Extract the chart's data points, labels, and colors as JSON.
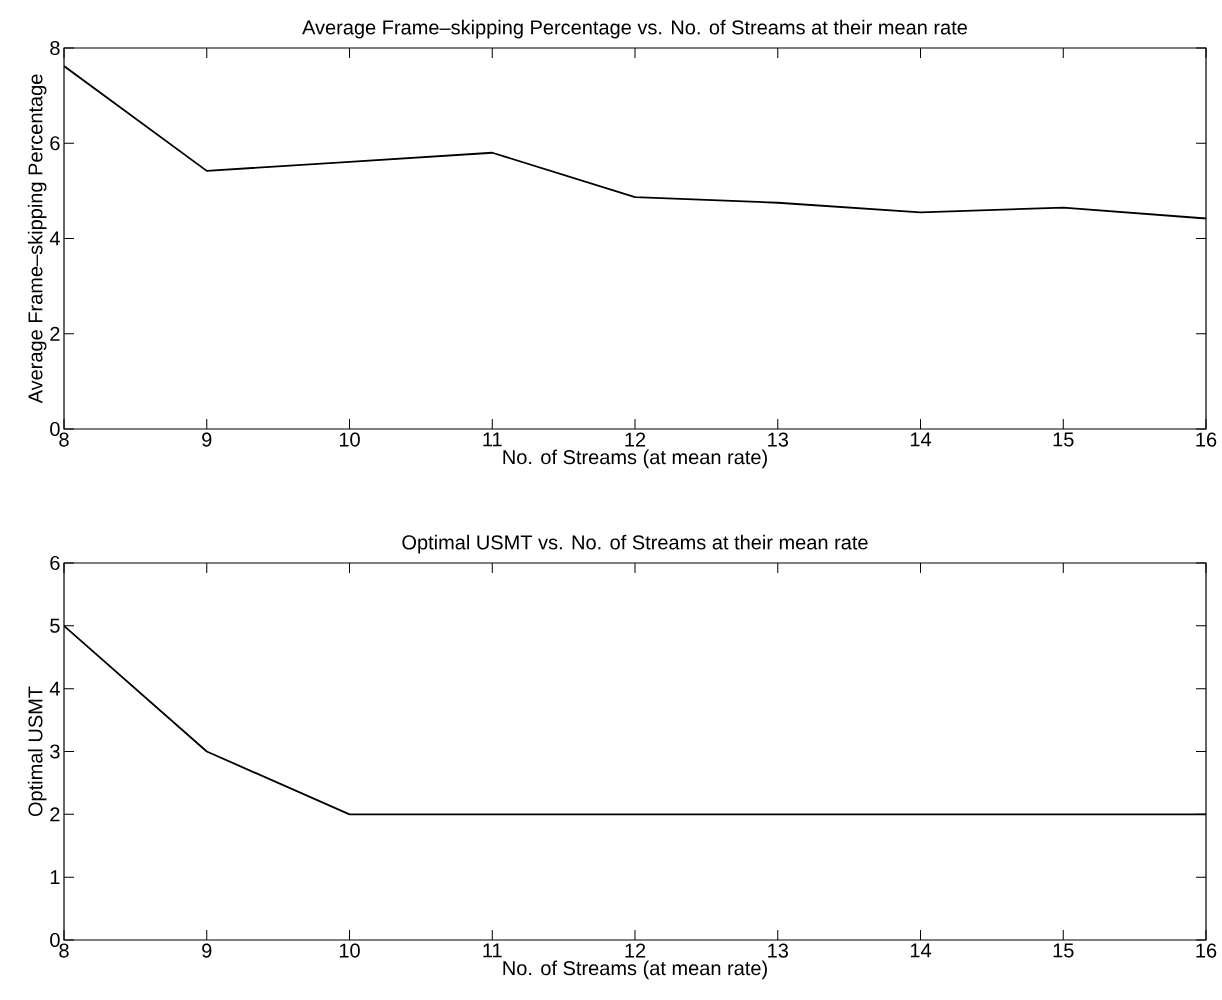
{
  "chart_data": [
    {
      "type": "line",
      "title": "Average Frame–skipping Percentage vs. No. of Streams at their mean rate",
      "xlabel": "No. of Streams (at mean rate)",
      "ylabel": "Average Frame–skipping Percentage",
      "x": [
        8,
        9,
        10,
        11,
        12,
        13,
        14,
        15,
        16
      ],
      "series": [
        {
          "color": "#000000",
          "values": [
            7.62,
            5.42,
            5.61,
            5.8,
            4.87,
            4.75,
            4.55,
            4.65,
            4.42
          ]
        }
      ],
      "xlim": [
        8,
        16
      ],
      "ylim": [
        0,
        8
      ],
      "xticks": [
        8,
        9,
        10,
        11,
        12,
        13,
        14,
        15,
        16
      ],
      "yticks": [
        0,
        2,
        4,
        6,
        8
      ],
      "grid": false
    },
    {
      "type": "line",
      "title": "Optimal USMT vs. No. of Streams at their mean rate",
      "xlabel": "No. of Streams (at mean rate)",
      "ylabel": "Optimal USMT",
      "x": [
        8,
        9,
        10,
        11,
        12,
        13,
        14,
        15,
        16
      ],
      "series": [
        {
          "color": "#000000",
          "values": [
            5,
            3,
            2,
            2,
            2,
            2,
            2,
            2,
            2
          ]
        }
      ],
      "xlim": [
        8,
        16
      ],
      "ylim": [
        0,
        6
      ],
      "xticks": [
        8,
        9,
        10,
        11,
        12,
        13,
        14,
        15,
        16
      ],
      "yticks": [
        0,
        1,
        2,
        3,
        4,
        5,
        6
      ],
      "grid": false
    }
  ]
}
